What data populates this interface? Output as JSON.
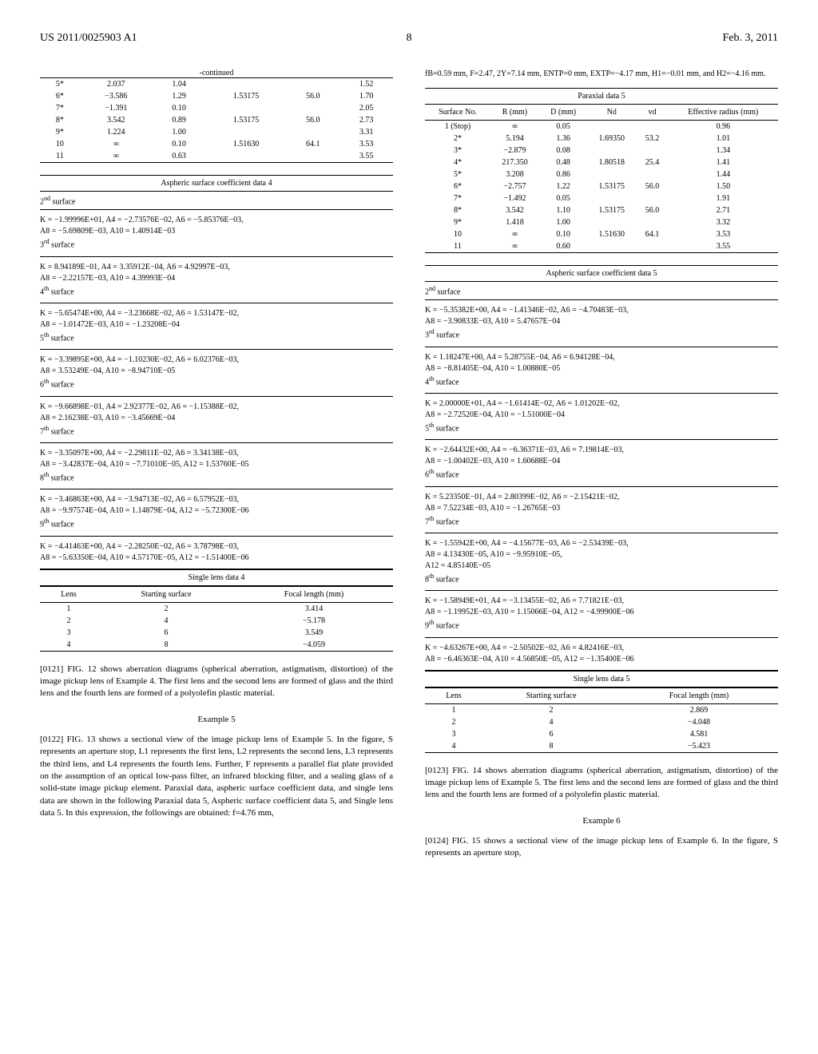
{
  "header": {
    "left": "US 2011/0025903 A1",
    "page": "8",
    "right": "Feb. 3, 2011"
  },
  "left_col": {
    "continued_label": "-continued",
    "cont_table": {
      "rows": [
        [
          "5*",
          "2.037",
          "1.04",
          "",
          "",
          "1.52"
        ],
        [
          "6*",
          "−3.586",
          "1.29",
          "1.53175",
          "56.0",
          "1.70"
        ],
        [
          "7*",
          "−1.391",
          "0.10",
          "",
          "",
          "2.05"
        ],
        [
          "8*",
          "3.542",
          "0.89",
          "1.53175",
          "56.0",
          "2.73"
        ],
        [
          "9*",
          "1.224",
          "1.00",
          "",
          "",
          "3.31"
        ],
        [
          "10",
          "∞",
          "0.10",
          "1.51630",
          "64.1",
          "3.53"
        ],
        [
          "11",
          "∞",
          "0.63",
          "",
          "",
          "3.55"
        ]
      ]
    },
    "aspheric_title": "Aspheric surface coefficient data 4",
    "surfaces": [
      {
        "label": "2",
        "sup": "nd",
        "coeff": "K = −1.99996E+01, A4 = −2.73576E−02, A6 = −5.85376E−03,\nA8 = −5.69809E−03, A10 = 1.40914E−03"
      },
      {
        "label": "3",
        "sup": "rd",
        "coeff": "K = 8.94189E−01, A4 = 3.35912E−04, A6 = 4.92997E−03,\nA8 = −2.22157E−03, A10 = 4.39993E−04"
      },
      {
        "label": "4",
        "sup": "th",
        "coeff": "K = −5.65474E+00, A4 = −3.23668E−02, A6 = 1.53147E−02,\nA8 = −1.01472E−03, A10 = −1.23208E−04"
      },
      {
        "label": "5",
        "sup": "th",
        "coeff": "K = −3.39895E+00, A4 = −1.10230E−02, A6 = 6.02376E−03,\nA8 = 3.53249E−04, A10 = −8.94710E−05"
      },
      {
        "label": "6",
        "sup": "th",
        "coeff": "K = −9.66898E−01, A4 = 2.92377E−02, A6 = −1.15388E−02,\nA8 = 2.16238E−03, A10 = −3.45669E−04"
      },
      {
        "label": "7",
        "sup": "th",
        "coeff": "K = −3.35097E+00, A4 = −2.29811E−02, A6 = 3.34138E−03,\nA8 = −3.42837E−04, A10 = −7.71010E−05, A12 = 1.53760E−05"
      },
      {
        "label": "8",
        "sup": "th",
        "coeff": "K = −3.46863E+00, A4 = −3.94713E−02, A6 = 6.57952E−03,\nA8 = −9.97574E−04, A10 = 1.14879E−04, A12 = −5.72300E−06"
      },
      {
        "label": "9",
        "sup": "th",
        "coeff": "K = −4.41463E+00, A4 = −2.28250E−02, A6 = 3.78798E−03,\nA8 = −5.63350E−04, A10 = 4.57170E−05, A12 = −1.51400E−06"
      }
    ],
    "single_lens_title": "Single lens data 4",
    "single_lens": {
      "headers": [
        "Lens",
        "Starting surface",
        "Focal length (mm)"
      ],
      "rows": [
        [
          "1",
          "2",
          "3.414"
        ],
        [
          "2",
          "4",
          "−5.178"
        ],
        [
          "3",
          "6",
          "3.549"
        ],
        [
          "4",
          "8",
          "−4.059"
        ]
      ]
    },
    "para_0121": "[0121]   FIG. 12 shows aberration diagrams (spherical aberration, astigmatism, distortion) of the image pickup lens of Example 4. The first lens and the second lens are formed of glass and the third lens and the fourth lens are formed of a polyolefin plastic material.",
    "example5_hdr": "Example 5",
    "para_0122": "[0122]   FIG. 13 shows a sectional view of the image pickup lens of Example 5. In the figure, S represents an aperture stop, L1 represents the first lens, L2 represents the second lens, L3 represents the third lens, and L4 represents the fourth lens. Further, F represents a parallel flat plate provided on the assumption of an optical low-pass filter, an infrared blocking filter, and a sealing glass of a solid-state image pickup element. Paraxial data, aspheric surface coefficient data, and single lens data are shown in the following Paraxial data 5, Aspheric surface coefficient data 5, and Single lens data 5. In this expression, the followings are obtained: f=4.76 mm,"
  },
  "right_col": {
    "intro": "fB=0.59 mm, F=2.47, 2Y=7.14 mm, ENTP=0 mm, EXTP=−4.17 mm, H1=−0.01 mm, and H2=−4.16 mm.",
    "paraxial_title": "Paraxial data 5",
    "paraxial": {
      "headers": [
        "Surface No.",
        "R (mm)",
        "D (mm)",
        "Nd",
        "vd",
        "Effective radius (mm)"
      ],
      "rows": [
        [
          "1 (Stop)",
          "∞",
          "0.05",
          "",
          "",
          "0.96"
        ],
        [
          "2*",
          "5.194",
          "1.36",
          "1.69350",
          "53.2",
          "1.01"
        ],
        [
          "3*",
          "−2.879",
          "0.08",
          "",
          "",
          "1.34"
        ],
        [
          "4*",
          "217.350",
          "0.48",
          "1.80518",
          "25.4",
          "1.41"
        ],
        [
          "5*",
          "3.208",
          "0.86",
          "",
          "",
          "1.44"
        ],
        [
          "6*",
          "−2.757",
          "1.22",
          "1.53175",
          "56.0",
          "1.50"
        ],
        [
          "7*",
          "−1.492",
          "0.05",
          "",
          "",
          "1.91"
        ],
        [
          "8*",
          "3.542",
          "1.10",
          "1.53175",
          "56.0",
          "2.71"
        ],
        [
          "9*",
          "1.418",
          "1.00",
          "",
          "",
          "3.32"
        ],
        [
          "10",
          "∞",
          "0.10",
          "1.51630",
          "64.1",
          "3.53"
        ],
        [
          "11",
          "∞",
          "0.60",
          "",
          "",
          "3.55"
        ]
      ]
    },
    "aspheric_title": "Aspheric surface coefficient data 5",
    "surfaces": [
      {
        "label": "2",
        "sup": "nd",
        "coeff": "K = −5.35382E+00, A4 = −1.41346E−02, A6 = −4.70483E−03,\nA8 = −3.90833E−03, A10 = 5.47657E−04"
      },
      {
        "label": "3",
        "sup": "rd",
        "coeff": "K = 1.18247E+00, A4 = 5.28755E−04, A6 = 6.94128E−04,\nA8 = −8.81405E−04, A10 = 1.00880E−05"
      },
      {
        "label": "4",
        "sup": "th",
        "coeff": "K = 2.00000E+01, A4 = −1.61414E−02, A6 = 1.01202E−02,\nA8 = −2.72520E−04, A10 = −1.51000E−04"
      },
      {
        "label": "5",
        "sup": "th",
        "coeff": "K = −2.64432E+00, A4 = −6.36371E−03, A6 = 7.19814E−03,\nA8 = −1.00402E−03, A10 = 1.60688E−04"
      },
      {
        "label": "6",
        "sup": "th",
        "coeff": "K = 5.23350E−01, A4 = 2.80399E−02, A6 = −2.15421E−02,\nA8 = 7.52234E−03, A10 = −1.26765E−03"
      },
      {
        "label": "7",
        "sup": "th",
        "coeff": "K = −1.55942E+00, A4 = −4.15677E−03, A6 = −2.53439E−03,\nA8 = 4.13430E−05, A10 = −9.95910E−05,\nA12 = 4.85140E−05"
      },
      {
        "label": "8",
        "sup": "th",
        "coeff": "K = −1.58949E+01, A4 = −3.13455E−02, A6 = 7.71821E−03,\nA8 = −1.19952E−03, A10 = 1.15066E−04, A12 = −4.99900E−06"
      },
      {
        "label": "9",
        "sup": "th",
        "coeff": "K = −4.63267E+00, A4 = −2.50502E−02, A6 = 4.82416E−03,\nA8 = −6.46363E−04, A10 = 4.56850E−05, A12 = −1.35400E−06"
      }
    ],
    "single_lens_title": "Single lens data 5",
    "single_lens": {
      "headers": [
        "Lens",
        "Starting surface",
        "Focal length (mm)"
      ],
      "rows": [
        [
          "1",
          "2",
          "2.869"
        ],
        [
          "2",
          "4",
          "−4.048"
        ],
        [
          "3",
          "6",
          "4.581"
        ],
        [
          "4",
          "8",
          "−5.423"
        ]
      ]
    },
    "para_0123": "[0123]   FIG. 14 shows aberration diagrams (spherical aberration, astigmatism, distortion) of the image pickup lens of Example 5. The first lens and the second lens are formed of glass and the third lens and the fourth lens are formed of a polyolefin plastic material.",
    "example6_hdr": "Example 6",
    "para_0124": "[0124]   FIG. 15 shows a sectional view of the image pickup lens of Example 6. In the figure, S represents an aperture stop,"
  }
}
